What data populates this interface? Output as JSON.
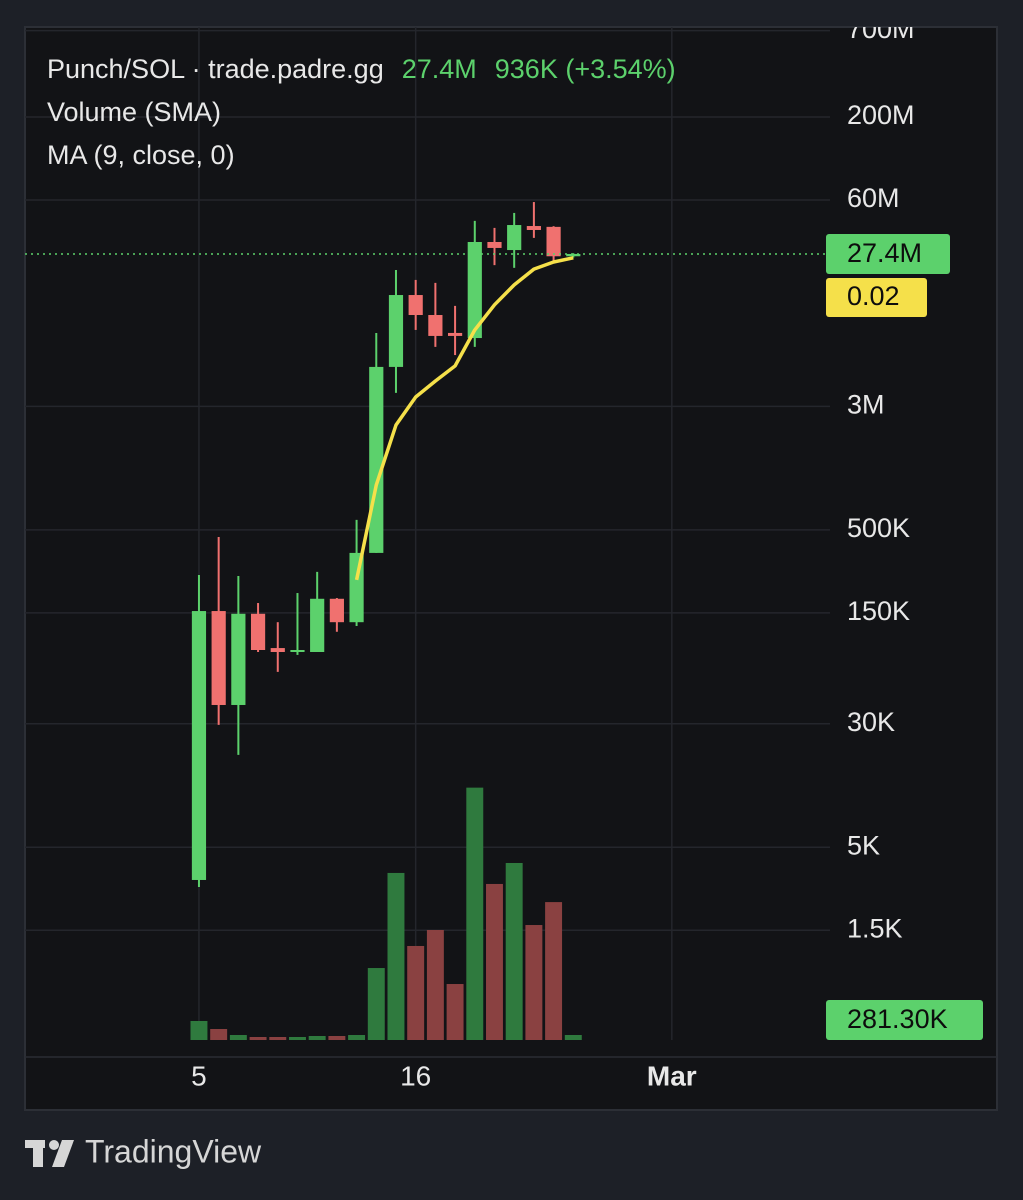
{
  "chart_data": {
    "type": "candlestick",
    "title": "Punch/SOL · trade.padre.gg",
    "price_label": "27.4M",
    "change_label": "936K (+3.54%)",
    "ma_axis_label": "0.02",
    "brand": "TradingView",
    "log_scale": true,
    "grid": true,
    "up_color": "#5cd16c",
    "down_color": "#f0716f",
    "x": [
      5,
      6,
      7,
      8,
      9,
      10,
      11,
      12,
      13,
      14,
      15,
      16,
      17,
      18,
      19,
      20,
      21,
      22,
      23,
      24
    ],
    "open": [
      3110,
      154000,
      39400,
      148000,
      90000,
      85000,
      85000,
      184000,
      131000,
      358000,
      5320000,
      15100000,
      11300000,
      8710000,
      8090000,
      32600000,
      29000000,
      41100000,
      40600000,
      26500000
    ],
    "high": [
      260000,
      451000,
      256000,
      173000,
      131000,
      200000,
      272000,
      186000,
      578000,
      8710000,
      21700000,
      18800000,
      18000000,
      12900000,
      44300000,
      40000000,
      49700000,
      58200000,
      41000000,
      27700000
    ],
    "low": [
      2810,
      29500,
      19100,
      85000,
      63700,
      81500,
      85000,
      114000,
      124000,
      358000,
      3650000,
      9100000,
      7110000,
      6320000,
      7110000,
      23300000,
      22400000,
      34600000,
      24400000,
      26000000
    ],
    "close": [
      154000,
      39400,
      148000,
      87500,
      85000,
      87500,
      184000,
      131000,
      358000,
      5320000,
      15100000,
      11300000,
      8340000,
      8340000,
      32600000,
      29900000,
      41700000,
      38800000,
      26500000,
      27400000
    ],
    "series": [
      {
        "name": "Volume (SMA)",
        "type": "bar",
        "axis": "y2",
        "up_color": "#2f7a3e",
        "down_color": "#8a4141",
        "values": [
          1070000,
          619000,
          281000,
          169000,
          169000,
          169000,
          225000,
          225000,
          281000,
          4050000,
          9400000,
          5290000,
          6190000,
          3150000,
          14200000,
          8780000,
          9960000,
          6470000,
          7760000,
          281300
        ],
        "value_labels": [
          null,
          null,
          null,
          null,
          null,
          null,
          null,
          null,
          null,
          null,
          null,
          null,
          null,
          null,
          null,
          null,
          null,
          null,
          null,
          "281.30K"
        ]
      },
      {
        "name": "MA (9, close, 0)",
        "type": "line",
        "color": "#f5e04a",
        "values": [
          null,
          null,
          null,
          null,
          null,
          null,
          null,
          null,
          242000,
          960000,
          2290000,
          3440000,
          4340000,
          5400000,
          9100000,
          13100000,
          17500000,
          22000000,
          24400000,
          25900000
        ]
      }
    ],
    "xlim": [
      -3.83,
      37.03
    ],
    "xticks": [
      {
        "value": 5,
        "label": "5"
      },
      {
        "value": 16,
        "label": "16"
      },
      {
        "value": 29,
        "label": "Mar"
      }
    ],
    "ylim": [
      305,
      738000000
    ],
    "yticks": [
      {
        "value": 700000000,
        "label": "700M"
      },
      {
        "value": 200000000,
        "label": "200M"
      },
      {
        "value": 60000000,
        "label": "60M"
      },
      {
        "value": 3000000,
        "label": "3M"
      },
      {
        "value": 500000,
        "label": "500K"
      },
      {
        "value": 150000,
        "label": "150K"
      },
      {
        "value": 30000,
        "label": "30K"
      },
      {
        "value": 5000,
        "label": "5K"
      },
      {
        "value": 1500,
        "label": "1.5K"
      }
    ],
    "y2lim": [
      0,
      57000000
    ]
  }
}
